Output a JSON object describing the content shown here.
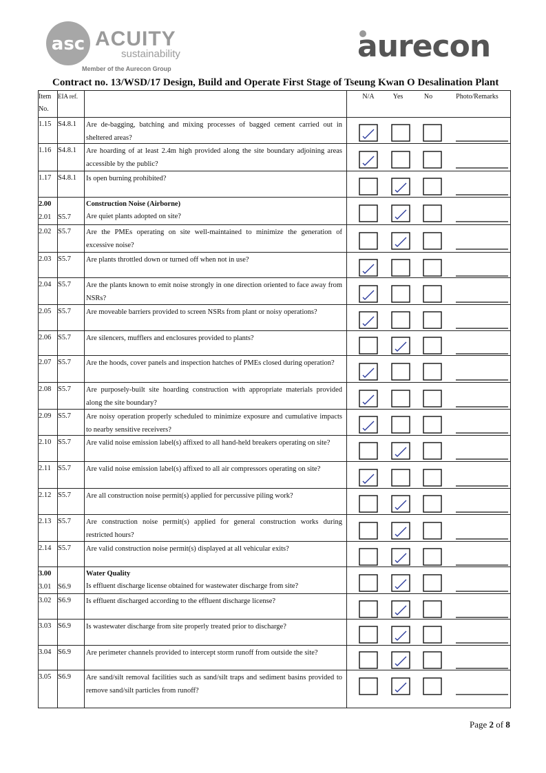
{
  "header": {
    "left_logo": {
      "name": "ACUITY",
      "tagline": "sustainability",
      "member": "Member of the Aurecon Group"
    },
    "right_logo": "aurecon",
    "title": "Contract no. 13/WSD/17 Design, Build and Operate First Stage of Tseung Kwan O Desalination Plant"
  },
  "table": {
    "columns": {
      "item": [
        "Item",
        "No."
      ],
      "ref": "EIA ref.",
      "options": [
        "N/A",
        "Yes",
        "No"
      ],
      "remarks": "Photo/Remarks"
    },
    "rows": [
      {
        "item": "1.15",
        "ref": "S4.8.1",
        "question": "Are de-bagging, batching and mixing processes of bagged cement carried out in sheltered areas?",
        "tick": 0
      },
      {
        "item": "1.16",
        "ref": "S4.8.1",
        "question": "Are hoarding of at least 2.4m high provided along the site boundary adjoining areas accessible by the public?",
        "tick": 0
      },
      {
        "item": "1.17",
        "ref": "S4.8.1",
        "question": "Is open burning prohibited?",
        "tick": 1
      },
      {
        "section_item": "2.00",
        "section_title": "Construction Noise (Airborne)",
        "item": "2.01",
        "ref": "S5.7",
        "question": "Are quiet plants adopted on site?",
        "tick": 1
      },
      {
        "item": "2.02",
        "ref": "S5.7",
        "question": "Are the PMEs operating on site well-maintained to minimize the generation of excessive noise?",
        "tick": 1
      },
      {
        "item": "2.03",
        "ref": "S5.7",
        "question": "Are plants throttled down or turned off when not in use?",
        "tick": 0
      },
      {
        "item": "2.04",
        "ref": "S5.7",
        "question": "Are the plants known to emit noise strongly in one direction oriented to face away from NSRs?",
        "tick": 0
      },
      {
        "item": "2.05",
        "ref": "S5.7",
        "question": "Are moveable barriers provided to screen NSRs from plant or noisy operations?",
        "tick": 0
      },
      {
        "item": "2.06",
        "ref": "S5.7",
        "question": "Are silencers, mufflers and enclosures provided to plants?",
        "tick": 1
      },
      {
        "item": "2.07",
        "ref": "S5.7",
        "question": "Are the hoods, cover panels and inspection hatches of PMEs closed during operation?",
        "tick": 0
      },
      {
        "item": "2.08",
        "ref": "S5.7",
        "question": "Are purposely-built site hoarding construction with appropriate materials provided along the site boundary?",
        "tick": 0
      },
      {
        "item": "2.09",
        "ref": "S5.7",
        "question": "Are noisy operation properly scheduled to minimize exposure and cumulative impacts to nearby sensitive receivers?",
        "tick": 0
      },
      {
        "item": "2.10",
        "ref": "S5.7",
        "question": "Are valid noise emission label(s) affixed to all hand-held breakers operating on site?",
        "tick": 1
      },
      {
        "item": "2.11",
        "ref": "S5.7",
        "question": "Are valid noise emission label(s) affixed to all air compressors operating on site?",
        "tick": 0
      },
      {
        "item": "2.12",
        "ref": "S5.7",
        "question": "Are all construction noise permit(s) applied for percussive piling work?",
        "tick": 1
      },
      {
        "item": "2.13",
        "ref": "S5.7",
        "question": "Are construction noise permit(s) applied for general construction works during restricted hours?",
        "tick": 1
      },
      {
        "item": "2.14",
        "ref": "S5.7",
        "question": "Are valid construction noise permit(s) displayed at all vehicular exits?",
        "tick": 1
      },
      {
        "section_item": "3.00",
        "section_title": "Water Quality",
        "item": "3.01",
        "ref": "S6.9",
        "question": "Is effluent discharge license obtained for wastewater discharge from site?",
        "tick": 1
      },
      {
        "item": "3.02",
        "ref": "S6.9",
        "question": "Is effluent discharged according to the effluent discharge license?",
        "tick": 1
      },
      {
        "item": "3.03",
        "ref": "S6.9",
        "question": "Is wastewater discharge from site properly treated prior to discharge?",
        "tick": 1
      },
      {
        "item": "3.04",
        "ref": "S6.9",
        "question": "Are perimeter channels provided to intercept storm runoff from outside the site?",
        "tick": 1
      },
      {
        "item": "3.05",
        "ref": "S6.9",
        "question": "Are sand/silt removal facilities such as sand/silt traps and sediment basins provided to remove sand/silt particles from runoff?",
        "tick": 1
      }
    ]
  },
  "footer": {
    "page_word": "Page",
    "page": "2",
    "of_word": "of",
    "total": "8"
  }
}
